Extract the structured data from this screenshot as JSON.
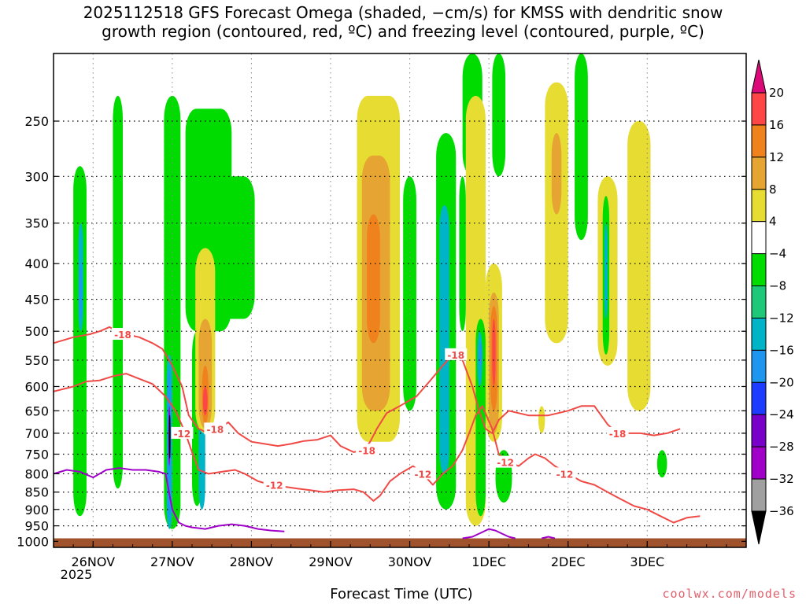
{
  "title": "2025112518 GFS Forecast Omega (shaded, −cm/s) for KMSS with dendritic snow\ngrowth region (contoured, red, ºC) and freezing level (contoured, purple, ºC)",
  "credit": "coolwx.com/models",
  "chart_data": {
    "type": "time-height cross-section",
    "title": "2025112518 GFS Forecast Omega (shaded, −cm/s) for KMSS with dendritic snow growth region (contoured, red, ºC) and freezing level (contoured, purple, ºC)",
    "xlabel": "Forecast Time (UTC)",
    "ylabel": "",
    "year_label": "2025",
    "x_unit": "hours since 2025112518",
    "xlim": [
      -6,
      204
    ],
    "x_ticks": [
      {
        "hour": 6,
        "label": "26NOV"
      },
      {
        "hour": 30,
        "label": "27NOV"
      },
      {
        "hour": 54,
        "label": "28NOV"
      },
      {
        "hour": 78,
        "label": "29NOV"
      },
      {
        "hour": 102,
        "label": "30NOV"
      },
      {
        "hour": 126,
        "label": "1DEC"
      },
      {
        "hour": 150,
        "label": "2DEC"
      },
      {
        "hour": 174,
        "label": "3DEC"
      }
    ],
    "y_unit": "hPa",
    "ylim": [
      1020,
      200
    ],
    "y_ticks": [
      250,
      300,
      350,
      400,
      450,
      500,
      550,
      600,
      650,
      700,
      750,
      800,
      850,
      900,
      950,
      1000
    ],
    "colorbar": {
      "labels": [
        "20",
        "16",
        "12",
        "8",
        "4",
        "−4",
        "−8",
        "−12",
        "−16",
        "−20",
        "−24",
        "−28",
        "−32",
        "−36"
      ],
      "bins": [
        {
          "lo": 16,
          "hi": 20,
          "color": "#ff4646"
        },
        {
          "lo": 12,
          "hi": 16,
          "color": "#f0821e"
        },
        {
          "lo": 8,
          "hi": 12,
          "color": "#e6a532"
        },
        {
          "lo": 4,
          "hi": 8,
          "color": "#e6dc32"
        },
        {
          "lo": -4,
          "hi": 4,
          "color": "#ffffff"
        },
        {
          "lo": -8,
          "hi": -4,
          "color": "#00dc00"
        },
        {
          "lo": -12,
          "hi": -8,
          "color": "#1ec878"
        },
        {
          "lo": -16,
          "hi": -12,
          "color": "#00b4c8"
        },
        {
          "lo": -20,
          "hi": -16,
          "color": "#1e96f0"
        },
        {
          "lo": -24,
          "hi": -20,
          "color": "#1e3cff"
        },
        {
          "lo": -28,
          "hi": -24,
          "color": "#7800c8"
        },
        {
          "lo": -32,
          "hi": -28,
          "color": "#a000c8"
        },
        {
          "lo": -36,
          "hi": -32,
          "color": "#a0a0a0"
        }
      ],
      "over_color": "#dc0a78",
      "under_color": "#000000"
    },
    "omega_regions": [
      {
        "t0": 0,
        "t1": 4,
        "p_top": 290,
        "p_bot": 920,
        "value": -6
      },
      {
        "t0": 1.5,
        "t1": 3,
        "p_top": 350,
        "p_bot": 500,
        "value": -14
      },
      {
        "t0": 1.8,
        "t1": 2.7,
        "p_top": 400,
        "p_bot": 480,
        "value": -17
      },
      {
        "t0": 12,
        "t1": 15,
        "p_top": 230,
        "p_bot": 840,
        "value": -6
      },
      {
        "t0": 27.5,
        "t1": 32.5,
        "p_top": 230,
        "p_bot": 960,
        "value": -6
      },
      {
        "t0": 28.3,
        "t1": 30,
        "p_top": 540,
        "p_bot": 960,
        "value": -14
      },
      {
        "t0": 28.5,
        "t1": 29.5,
        "p_top": 570,
        "p_bot": 930,
        "value": -18
      },
      {
        "t0": 28.8,
        "t1": 29.4,
        "p_top": 640,
        "p_bot": 780,
        "value": -30
      },
      {
        "t0": 29,
        "t1": 29.3,
        "p_top": 660,
        "p_bot": 760,
        "value": -40
      },
      {
        "t0": 34,
        "t1": 48,
        "p_top": 240,
        "p_bot": 500,
        "value": -6
      },
      {
        "t0": 42,
        "t1": 55,
        "p_top": 300,
        "p_bot": 480,
        "value": -6
      },
      {
        "t0": 36,
        "t1": 39,
        "p_top": 500,
        "p_bot": 890,
        "value": -6
      },
      {
        "t0": 38,
        "t1": 40,
        "p_top": 660,
        "p_bot": 900,
        "value": -14
      },
      {
        "t0": 37,
        "t1": 43,
        "p_top": 380,
        "p_bot": 700,
        "value": 5
      },
      {
        "t0": 38,
        "t1": 42,
        "p_top": 480,
        "p_bot": 690,
        "value": 10
      },
      {
        "t0": 39,
        "t1": 41,
        "p_top": 560,
        "p_bot": 680,
        "value": 14
      },
      {
        "t0": 39.3,
        "t1": 40.7,
        "p_top": 600,
        "p_bot": 660,
        "value": 17
      },
      {
        "t0": 86,
        "t1": 99,
        "p_top": 230,
        "p_bot": 720,
        "value": 5
      },
      {
        "t0": 87.5,
        "t1": 96,
        "p_top": 280,
        "p_bot": 650,
        "value": 10
      },
      {
        "t0": 89,
        "t1": 93,
        "p_top": 340,
        "p_bot": 520,
        "value": 13
      },
      {
        "t0": 100,
        "t1": 104,
        "p_top": 300,
        "p_bot": 650,
        "value": -6
      },
      {
        "t0": 110,
        "t1": 116,
        "p_top": 260,
        "p_bot": 900,
        "value": -6
      },
      {
        "t0": 111,
        "t1": 114,
        "p_top": 330,
        "p_bot": 800,
        "value": -14
      },
      {
        "t0": 118,
        "t1": 124,
        "p_top": 200,
        "p_bot": 300,
        "value": -6
      },
      {
        "t0": 119,
        "t1": 125,
        "p_top": 230,
        "p_bot": 950,
        "value": 5
      },
      {
        "t0": 122,
        "t1": 125,
        "p_top": 480,
        "p_bot": 920,
        "value": -6
      },
      {
        "t0": 122.5,
        "t1": 124,
        "p_top": 500,
        "p_bot": 600,
        "value": -14
      },
      {
        "t0": 123,
        "t1": 124,
        "p_top": 520,
        "p_bot": 560,
        "value": -17
      },
      {
        "t0": 125,
        "t1": 130,
        "p_top": 400,
        "p_bot": 720,
        "value": 5
      },
      {
        "t0": 126,
        "t1": 129,
        "p_top": 440,
        "p_bot": 700,
        "value": 10
      },
      {
        "t0": 126.5,
        "t1": 128.5,
        "p_top": 460,
        "p_bot": 650,
        "value": 14
      },
      {
        "t0": 127,
        "t1": 128,
        "p_top": 480,
        "p_bot": 600,
        "value": 17
      },
      {
        "t0": 128,
        "t1": 133,
        "p_top": 740,
        "p_bot": 880,
        "value": -6
      },
      {
        "t0": 127,
        "t1": 131,
        "p_top": 200,
        "p_bot": 300,
        "value": -6
      },
      {
        "t0": 143,
        "t1": 150,
        "p_top": 220,
        "p_bot": 520,
        "value": 5
      },
      {
        "t0": 145,
        "t1": 148,
        "p_top": 260,
        "p_bot": 340,
        "value": 10
      },
      {
        "t0": 152,
        "t1": 156,
        "p_top": 200,
        "p_bot": 370,
        "value": -6
      },
      {
        "t0": 159,
        "t1": 165,
        "p_top": 300,
        "p_bot": 560,
        "value": 5
      },
      {
        "t0": 160.5,
        "t1": 162.5,
        "p_top": 320,
        "p_bot": 540,
        "value": -6
      },
      {
        "t0": 161,
        "t1": 162,
        "p_top": 350,
        "p_bot": 480,
        "value": -14
      },
      {
        "t0": 168,
        "t1": 175,
        "p_top": 250,
        "p_bot": 650,
        "value": 5
      },
      {
        "t0": 177,
        "t1": 180,
        "p_top": 740,
        "p_bot": 810,
        "value": -6
      },
      {
        "t0": 64,
        "t1": 84,
        "p_top": 280,
        "p_bot": 780,
        "value": 0
      },
      {
        "t0": 141,
        "t1": 143,
        "p_top": 640,
        "p_bot": 700,
        "value": 5
      },
      {
        "t0": 117,
        "t1": 119,
        "p_top": 300,
        "p_bot": 500,
        "value": -6
      }
    ],
    "ground": {
      "color": "#a0522d",
      "p_top": 990
    },
    "contours": [
      {
        "name": "-18 isotherm",
        "color": "#f04a46",
        "label": "-18",
        "label_at_hours": [
          15,
          43,
          89,
          116,
          165
        ],
        "points": [
          [
            -6,
            520
          ],
          [
            0,
            510
          ],
          [
            5,
            505
          ],
          [
            8,
            500
          ],
          [
            11,
            493
          ],
          [
            13,
            500
          ],
          [
            16,
            505
          ],
          [
            20,
            510
          ],
          [
            24,
            520
          ],
          [
            27,
            530
          ],
          [
            30,
            560
          ],
          [
            33,
            600
          ],
          [
            35,
            660
          ],
          [
            38,
            690
          ],
          [
            41,
            700
          ],
          [
            44,
            690
          ],
          [
            47,
            675
          ],
          [
            50,
            700
          ],
          [
            54,
            720
          ],
          [
            58,
            725
          ],
          [
            62,
            730
          ],
          [
            66,
            725
          ],
          [
            70,
            718
          ],
          [
            74,
            715
          ],
          [
            78,
            705
          ],
          [
            81,
            730
          ],
          [
            85,
            745
          ],
          [
            88,
            740
          ],
          [
            90,
            720
          ],
          [
            92,
            690
          ],
          [
            95,
            655
          ],
          [
            99,
            640
          ],
          [
            104,
            620
          ],
          [
            108,
            590
          ],
          [
            112,
            560
          ],
          [
            115,
            540
          ],
          [
            118,
            550
          ],
          [
            121,
            600
          ],
          [
            123,
            650
          ],
          [
            125,
            690
          ],
          [
            127,
            700
          ],
          [
            129,
            670
          ],
          [
            132,
            650
          ],
          [
            138,
            660
          ],
          [
            144,
            660
          ],
          [
            150,
            650
          ],
          [
            154,
            640
          ],
          [
            158,
            640
          ],
          [
            162,
            680
          ],
          [
            165,
            700
          ],
          [
            168,
            700
          ],
          [
            172,
            700
          ],
          [
            176,
            705
          ],
          [
            180,
            700
          ],
          [
            184,
            690
          ]
        ]
      },
      {
        "name": "-12 isotherm",
        "color": "#f04a46",
        "label": "-12",
        "label_at_hours": [
          33,
          61,
          106,
          131,
          149
        ],
        "points": [
          [
            -6,
            610
          ],
          [
            0,
            600
          ],
          [
            4,
            590
          ],
          [
            8,
            588
          ],
          [
            12,
            580
          ],
          [
            16,
            575
          ],
          [
            20,
            585
          ],
          [
            24,
            595
          ],
          [
            28,
            620
          ],
          [
            31,
            650
          ],
          [
            34,
            700
          ],
          [
            36,
            745
          ],
          [
            38,
            790
          ],
          [
            41,
            800
          ],
          [
            45,
            795
          ],
          [
            49,
            790
          ],
          [
            52,
            800
          ],
          [
            56,
            820
          ],
          [
            60,
            830
          ],
          [
            64,
            835
          ],
          [
            68,
            840
          ],
          [
            72,
            845
          ],
          [
            76,
            850
          ],
          [
            80,
            845
          ],
          [
            85,
            842
          ],
          [
            88,
            850
          ],
          [
            91,
            875
          ],
          [
            93,
            860
          ],
          [
            96,
            820
          ],
          [
            99,
            800
          ],
          [
            103,
            780
          ],
          [
            106,
            800
          ],
          [
            109,
            830
          ],
          [
            112,
            800
          ],
          [
            115,
            780
          ],
          [
            118,
            740
          ],
          [
            120,
            700
          ],
          [
            122,
            660
          ],
          [
            124,
            640
          ],
          [
            127,
            690
          ],
          [
            129,
            750
          ],
          [
            132,
            770
          ],
          [
            135,
            780
          ],
          [
            138,
            760
          ],
          [
            140,
            750
          ],
          [
            143,
            760
          ],
          [
            146,
            780
          ],
          [
            150,
            800
          ],
          [
            154,
            820
          ],
          [
            158,
            830
          ],
          [
            162,
            850
          ],
          [
            166,
            870
          ],
          [
            170,
            890
          ],
          [
            174,
            900
          ],
          [
            178,
            920
          ],
          [
            182,
            940
          ],
          [
            186,
            925
          ],
          [
            190,
            920
          ]
        ]
      },
      {
        "name": "freezing level (0 C)",
        "color": "#a000c8",
        "label": "",
        "label_at_hours": [],
        "points": [
          [
            -6,
            800
          ],
          [
            -2,
            790
          ],
          [
            2,
            795
          ],
          [
            6,
            810
          ],
          [
            10,
            790
          ],
          [
            14,
            785
          ],
          [
            18,
            790
          ],
          [
            22,
            790
          ],
          [
            26,
            795
          ],
          [
            28,
            800
          ],
          [
            29,
            850
          ],
          [
            30,
            900
          ],
          [
            32,
            940
          ],
          [
            34,
            950
          ],
          [
            36,
            955
          ],
          [
            40,
            960
          ],
          [
            44,
            950
          ],
          [
            48,
            945
          ],
          [
            52,
            950
          ],
          [
            56,
            960
          ],
          [
            60,
            965
          ],
          [
            64,
            968
          ]
        ]
      },
      {
        "name": "freezing level (0 C) second segment",
        "color": "#a000c8",
        "label": "",
        "label_at_hours": [],
        "points": [
          [
            118,
            990
          ],
          [
            121,
            985
          ],
          [
            124,
            970
          ],
          [
            126,
            960
          ],
          [
            128,
            965
          ],
          [
            130,
            975
          ],
          [
            132,
            985
          ],
          [
            134,
            990
          ]
        ]
      },
      {
        "name": "freezing level (0 C) third segment",
        "color": "#a000c8",
        "label": "",
        "label_at_hours": [],
        "points": [
          [
            142,
            990
          ],
          [
            144,
            985
          ],
          [
            146,
            990
          ]
        ]
      }
    ]
  }
}
